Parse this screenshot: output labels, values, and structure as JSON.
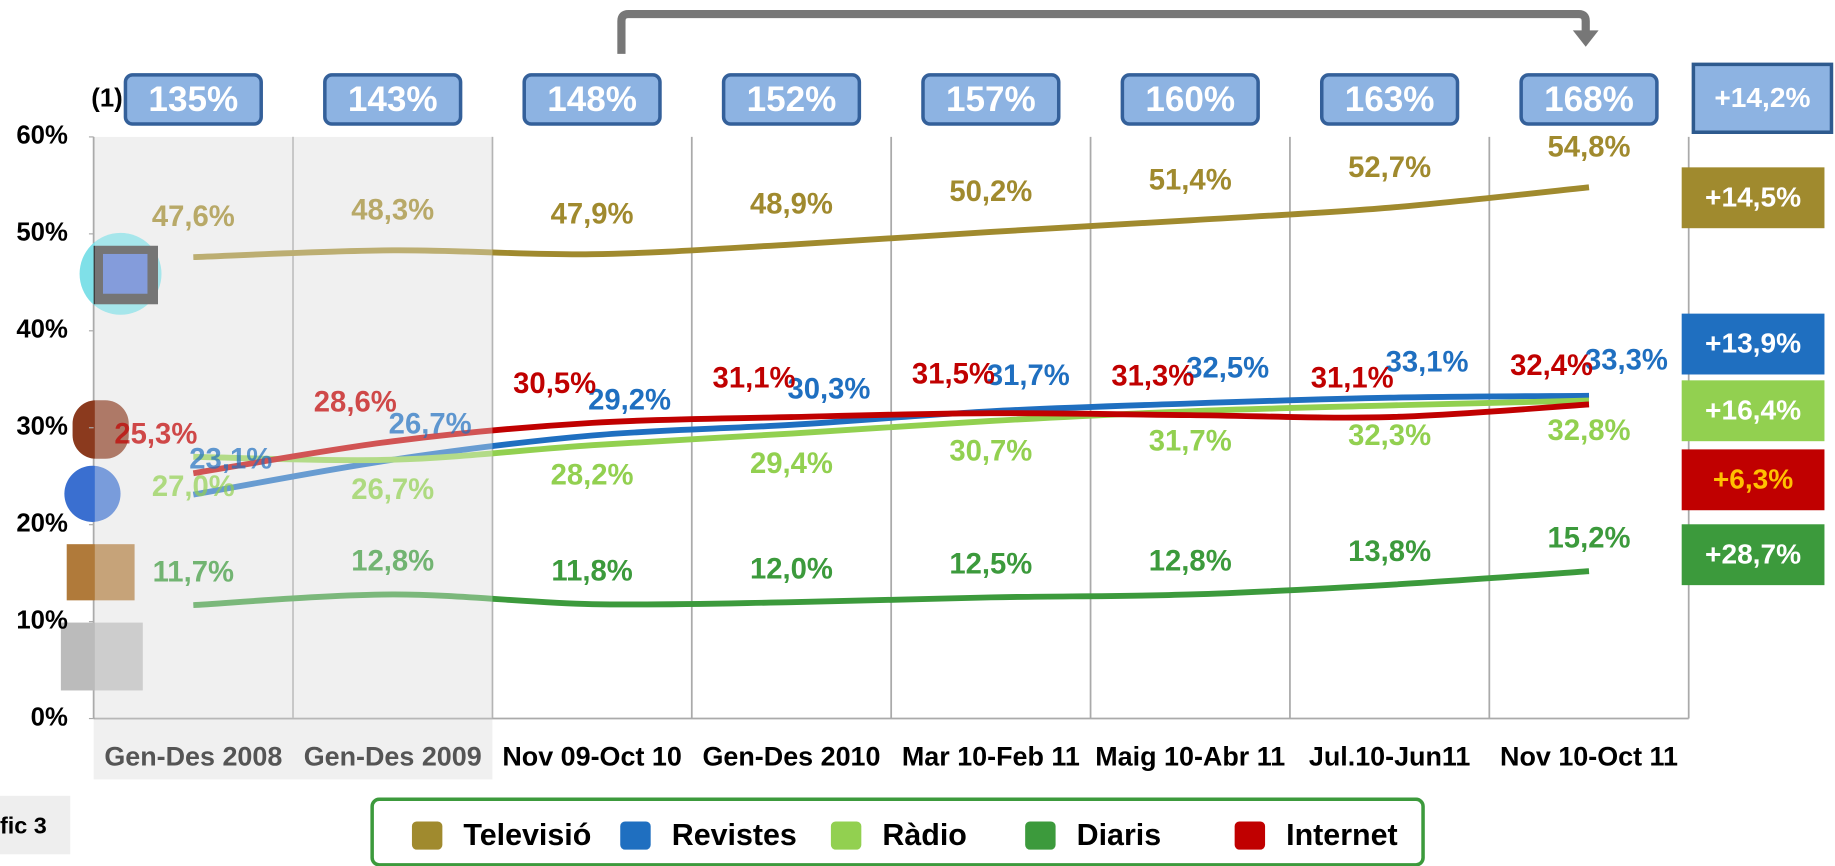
{
  "chart_data": {
    "type": "line",
    "figure_label": "fic 3",
    "index_note": "(1)",
    "index_labels": [
      "135%",
      "143%",
      "148%",
      "152%",
      "157%",
      "160%",
      "163%",
      "168%"
    ],
    "total_change": "+14,2%",
    "categories": [
      "Gen-Des 2008",
      "Gen-Des 2009",
      "Nov 09-Oct 10",
      "Gen-Des 2010",
      "Mar 10-Feb 11",
      "Maig 10-Abr 11",
      "Jul.10-Jun11",
      "Nov 10-Oct 11"
    ],
    "shaded_categories": 2,
    "ylim": [
      0,
      60
    ],
    "yticks": [
      {
        "value": 0,
        "label": "0%"
      },
      {
        "value": 10,
        "label": "10%"
      },
      {
        "value": 20,
        "label": "20%"
      },
      {
        "value": 30,
        "label": "30%"
      },
      {
        "value": 40,
        "label": "40%"
      },
      {
        "value": 50,
        "label": "50%"
      },
      {
        "value": 60,
        "label": "60%"
      }
    ],
    "series": [
      {
        "name": "Televisió",
        "color": "#a08a2e",
        "change": "+14,5%",
        "values": [
          47.6,
          48.3,
          47.9,
          48.9,
          50.2,
          51.4,
          52.7,
          54.8
        ],
        "value_labels": [
          "47,6%",
          "48,3%",
          "47,9%",
          "48,9%",
          "50,2%",
          "51,4%",
          "52,7%",
          "54,8%"
        ]
      },
      {
        "name": "Revistes",
        "color": "#1f6fc0",
        "change": "+13,9%",
        "values": [
          23.1,
          26.7,
          29.2,
          30.3,
          31.7,
          32.5,
          33.1,
          33.3
        ],
        "value_labels": [
          "23,1%",
          "26,7%",
          "29,2%",
          "30,3%",
          "31,7%",
          "32,5%",
          "33,1%",
          "33,3%"
        ]
      },
      {
        "name": "Ràdio",
        "color": "#92d050",
        "change": "+16,4%",
        "values": [
          27.0,
          26.7,
          28.2,
          29.4,
          30.7,
          31.7,
          32.3,
          32.8
        ],
        "value_labels": [
          "27,0%",
          "26,7%",
          "28,2%",
          "29,4%",
          "30,7%",
          "31,7%",
          "32,3%",
          "32,8%"
        ]
      },
      {
        "name": "Diaris",
        "color": "#3c9a3c",
        "change": "+28,7%",
        "values": [
          11.7,
          12.8,
          11.8,
          12.0,
          12.5,
          12.8,
          13.8,
          15.2
        ],
        "value_labels": [
          "11,7%",
          "12,8%",
          "11,8%",
          "12,0%",
          "12,5%",
          "12,8%",
          "13,8%",
          "15,2%"
        ]
      },
      {
        "name": "Internet",
        "color": "#c00000",
        "change": "+6,3%",
        "change_text_color": "#ffc000",
        "values": [
          25.3,
          28.6,
          30.5,
          31.1,
          31.5,
          31.3,
          31.1,
          32.4
        ],
        "value_labels": [
          "25,3%",
          "28,6%",
          "30,5%",
          "31,1%",
          "31,5%",
          "31,3%",
          "31,1%",
          "32,4%"
        ]
      }
    ]
  }
}
